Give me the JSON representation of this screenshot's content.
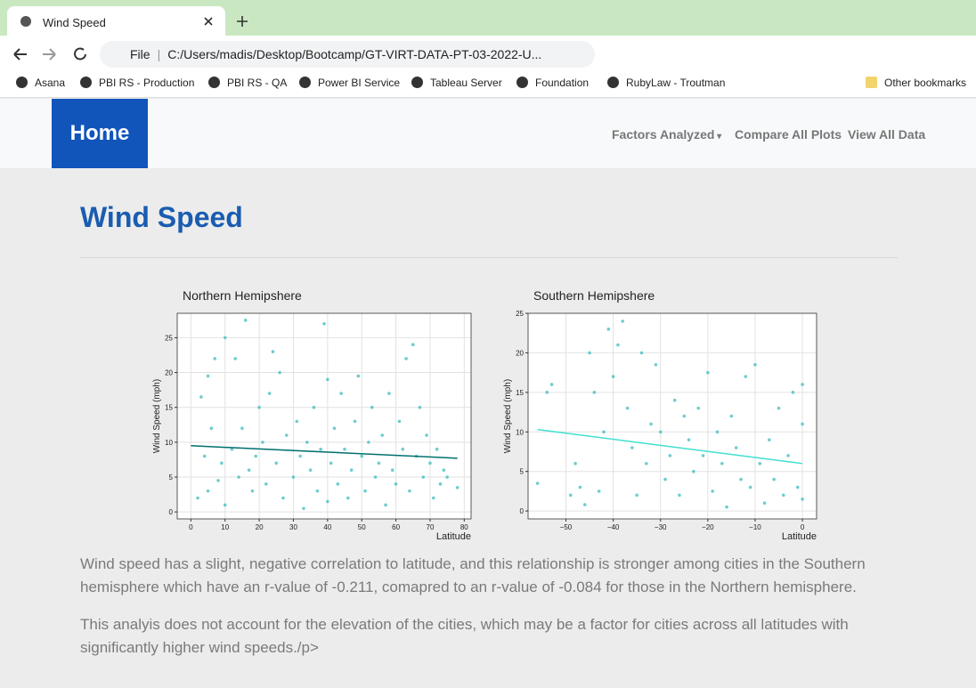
{
  "browser": {
    "tab_title": "Wind Speed",
    "address_scheme": "File",
    "address": "C:/Users/madis/Desktop/Bootcamp/GT-VIRT-DATA-PT-03-2022-U...",
    "bookmarks": [
      "Asana",
      "PBI RS - Production",
      "PBI RS - QA",
      "Power BI Service",
      "Tableau Server",
      "Foundation",
      "RubyLaw - Troutman"
    ],
    "other_bookmarks": "Other bookmarks"
  },
  "navbar": {
    "brand": "Home",
    "links": [
      "Factors Analyzed",
      "Compare All Plots",
      "View All Data"
    ]
  },
  "page": {
    "heading": "Wind Speed",
    "paragraphs": [
      "Wind speed has a slight, negative correlation to latitude, and this relationship is stronger among cities in the Southern hemisphere which have an r-value of -0.211, comapred to an r-value of -0.084 for those in the Northern hemisphere.",
      "This analyis does not account for the elevation of the cities, which may be a factor for cities across all latitudes with significantly higher wind speeds./p>"
    ]
  },
  "chart_data": [
    {
      "type": "scatter",
      "title": "Northern Hemipshere",
      "x_label": "Latitude",
      "y_label": "Wind Speed (mph)",
      "xlim": [
        -4,
        82
      ],
      "ylim": [
        -1,
        28.5
      ],
      "xticks": [
        0,
        10,
        20,
        30,
        40,
        50,
        60,
        70,
        80
      ],
      "yticks": [
        0,
        5,
        10,
        15,
        20,
        25
      ],
      "grid": true,
      "color": "#3cbcbc",
      "fit_color": "#00706e",
      "x": [
        2,
        3,
        4,
        5,
        5,
        6,
        7,
        8,
        9,
        10,
        10,
        12,
        13,
        14,
        15,
        16,
        17,
        18,
        19,
        20,
        21,
        22,
        23,
        24,
        25,
        26,
        27,
        28,
        30,
        31,
        32,
        33,
        34,
        35,
        36,
        37,
        38,
        39,
        40,
        40,
        41,
        42,
        43,
        44,
        45,
        46,
        47,
        48,
        49,
        50,
        51,
        52,
        53,
        54,
        55,
        56,
        57,
        58,
        59,
        60,
        61,
        62,
        63,
        64,
        65,
        66,
        67,
        68,
        69,
        70,
        71,
        72,
        73,
        74,
        75,
        78
      ],
      "values": [
        2,
        16.5,
        8,
        19.5,
        3,
        12,
        22,
        4.5,
        7,
        25,
        1,
        9,
        22,
        5,
        12,
        27.5,
        6,
        3,
        8,
        15,
        10,
        4,
        17,
        23,
        7,
        20,
        2,
        11,
        5,
        13,
        8,
        0.5,
        10,
        6,
        15,
        3,
        9,
        27,
        1.5,
        19,
        7,
        12,
        4,
        17,
        9,
        2,
        6,
        13,
        19.5,
        8,
        3,
        10,
        15,
        5,
        7,
        11,
        1,
        17,
        6,
        4,
        13,
        9,
        22,
        3,
        24,
        8,
        15,
        5,
        11,
        7,
        2,
        9,
        4,
        6,
        5,
        3.5
      ],
      "fit_x": [
        0,
        78
      ],
      "fit_y": [
        9.5,
        7.7
      ]
    },
    {
      "type": "scatter",
      "title": "Southern Hemipshere",
      "x_label": "Latitude",
      "y_label": "Wind Speed (mph)",
      "xlim": [
        -58,
        3
      ],
      "ylim": [
        -1,
        25
      ],
      "xticks": [
        {
          "value": -50,
          "label": "−50"
        },
        {
          "value": -40,
          "label": "−40"
        },
        {
          "value": -30,
          "label": "−30"
        },
        {
          "value": -20,
          "label": "−20"
        },
        {
          "value": -10,
          "label": "−10"
        },
        0
      ],
      "yticks": [
        0,
        5,
        10,
        15,
        20,
        25
      ],
      "grid": true,
      "color": "#3cbcbc",
      "fit_color": "#40e0d0",
      "x": [
        -56,
        -54,
        -53,
        -49,
        -48,
        -47,
        -46,
        -45,
        -44,
        -43,
        -42,
        -41,
        -40,
        -39,
        -38,
        -37,
        -36,
        -35,
        -34,
        -33,
        -32,
        -31,
        -30,
        -29,
        -28,
        -27,
        -26,
        -25,
        -24,
        -23,
        -22,
        -21,
        -20,
        -19,
        -18,
        -17,
        -16,
        -15,
        -14,
        -13,
        -12,
        -11,
        -10,
        -9,
        -8,
        -7,
        -6,
        -5,
        -4,
        -3,
        -2,
        -1,
        0,
        0,
        0
      ],
      "values": [
        3.5,
        15,
        16,
        2,
        6,
        3,
        0.8,
        20,
        15,
        2.5,
        10,
        23,
        17,
        21,
        24,
        13,
        8,
        2,
        20,
        6,
        11,
        18.5,
        10,
        4,
        7,
        14,
        2,
        12,
        9,
        5,
        13,
        7,
        17.5,
        2.5,
        10,
        6,
        0.5,
        12,
        8,
        4,
        17,
        3,
        18.5,
        6,
        1,
        9,
        4,
        13,
        2,
        7,
        15,
        3,
        16,
        11,
        1.5
      ],
      "fit_x": [
        -56,
        0
      ],
      "fit_y": [
        10.3,
        6.0
      ]
    }
  ]
}
